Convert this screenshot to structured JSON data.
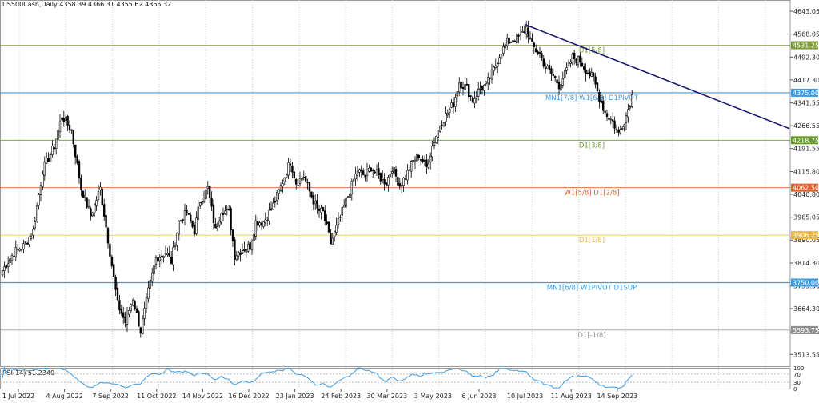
{
  "chart_data": {
    "type": "candlestick",
    "title": "US500Cash,Daily  4358.39 4366.31 4355.62 4365.32",
    "y_axis": {
      "ylim": [
        3475,
        4680
      ],
      "ticks": [
        4643.05,
        4568.05,
        4492.3,
        4417.3,
        4341.55,
        4266.55,
        4191.55,
        4115.8,
        4040.8,
        3965.05,
        3890.05,
        3814.3,
        3739.3,
        3664.3,
        3588.55,
        3513.55
      ]
    },
    "x_axis": {
      "labels": [
        "1 Jul 2022",
        "4 Aug 2022",
        "7 Sep 2022",
        "11 Oct 2022",
        "14 Nov 2022",
        "16 Dec 2022",
        "23 Jan 2023",
        "24 Feb 2023",
        "30 Mar 2023",
        "3 May 2023",
        "6 Jun 2023",
        "10 Jul 2023",
        "11 Aug 2023",
        "14 Sep 2023"
      ],
      "label_positions": [
        0,
        24,
        48,
        72,
        96,
        120,
        144,
        168,
        192,
        216,
        240,
        264,
        288,
        312
      ]
    },
    "levels": [
      {
        "value": 4531.25,
        "label": "D1[5/8]",
        "price_label": "4531.25",
        "color": "#7d9a3a"
      },
      {
        "value": 4375.0,
        "label": "MN1[7/8] W1[6/8] D1PIVOT",
        "price_label": "4375.00",
        "color": "#3d9be0"
      },
      {
        "value": 4218.75,
        "label": "D1[3/8]",
        "price_label": "4218.75",
        "color": "#6a9a2a"
      },
      {
        "value": 4062.5,
        "label": "W1[5/8] D1[2/8]",
        "price_label": "4062.50",
        "color": "#e0602a"
      },
      {
        "value": 3906.25,
        "label": "D1[1/8]",
        "price_label": "3906.25",
        "color": "#f0b840"
      },
      {
        "value": 3750.0,
        "label": "MN1[6/8] W1PIVOT D1SUP",
        "price_label": "3750.00",
        "color": "#3d9be0"
      },
      {
        "value": 3593.75,
        "label": "D1[-1/8]",
        "price_label": "3593.75",
        "color": "#909090"
      }
    ],
    "trendline": {
      "from": {
        "bar": 272,
        "price": 4600
      },
      "to": {
        "bar": 410,
        "price": 4257
      },
      "color": "#1c1c6e"
    },
    "close_anchors": [
      [
        0,
        3790
      ],
      [
        6,
        3850
      ],
      [
        11,
        3870
      ],
      [
        16,
        3920
      ],
      [
        21,
        4120
      ],
      [
        27,
        4200
      ],
      [
        31,
        4300
      ],
      [
        36,
        4250
      ],
      [
        41,
        4060
      ],
      [
        46,
        3970
      ],
      [
        51,
        4060
      ],
      [
        56,
        3850
      ],
      [
        60,
        3680
      ],
      [
        64,
        3620
      ],
      [
        68,
        3700
      ],
      [
        72,
        3590
      ],
      [
        76,
        3720
      ],
      [
        80,
        3830
      ],
      [
        85,
        3850
      ],
      [
        88,
        3820
      ],
      [
        92,
        3950
      ],
      [
        96,
        3980
      ],
      [
        100,
        3920
      ],
      [
        103,
        4020
      ],
      [
        107,
        4060
      ],
      [
        111,
        3920
      ],
      [
        114,
        3990
      ],
      [
        118,
        3980
      ],
      [
        121,
        3840
      ],
      [
        125,
        3860
      ],
      [
        129,
        3870
      ],
      [
        132,
        3950
      ],
      [
        136,
        3950
      ],
      [
        140,
        3990
      ],
      [
        144,
        4050
      ],
      [
        147,
        4100
      ],
      [
        150,
        4150
      ],
      [
        153,
        4080
      ],
      [
        157,
        4100
      ],
      [
        160,
        4050
      ],
      [
        164,
        3990
      ],
      [
        167,
        3980
      ],
      [
        171,
        3880
      ],
      [
        174,
        3930
      ],
      [
        178,
        4000
      ],
      [
        182,
        4070
      ],
      [
        185,
        4120
      ],
      [
        189,
        4100
      ],
      [
        192,
        4130
      ],
      [
        196,
        4100
      ],
      [
        200,
        4080
      ],
      [
        203,
        4130
      ],
      [
        207,
        4070
      ],
      [
        210,
        4100
      ],
      [
        214,
        4150
      ],
      [
        217,
        4170
      ],
      [
        221,
        4130
      ],
      [
        224,
        4200
      ],
      [
        228,
        4270
      ],
      [
        231,
        4300
      ],
      [
        235,
        4340
      ],
      [
        238,
        4410
      ],
      [
        242,
        4390
      ],
      [
        245,
        4350
      ],
      [
        249,
        4390
      ],
      [
        252,
        4400
      ],
      [
        256,
        4450
      ],
      [
        259,
        4500
      ],
      [
        263,
        4540
      ],
      [
        266,
        4550
      ],
      [
        270,
        4560
      ],
      [
        273,
        4590
      ],
      [
        276,
        4530
      ],
      [
        280,
        4500
      ],
      [
        283,
        4460
      ],
      [
        287,
        4430
      ],
      [
        290,
        4400
      ],
      [
        294,
        4450
      ],
      [
        297,
        4490
      ],
      [
        301,
        4480
      ],
      [
        304,
        4450
      ],
      [
        308,
        4420
      ],
      [
        311,
        4360
      ],
      [
        314,
        4310
      ],
      [
        318,
        4280
      ],
      [
        321,
        4240
      ],
      [
        325,
        4300
      ],
      [
        328,
        4365
      ]
    ],
    "rsi": {
      "label": "RSI(14) 51.2340",
      "ticks": [
        100,
        70,
        30,
        0
      ],
      "last": 51.234
    }
  }
}
